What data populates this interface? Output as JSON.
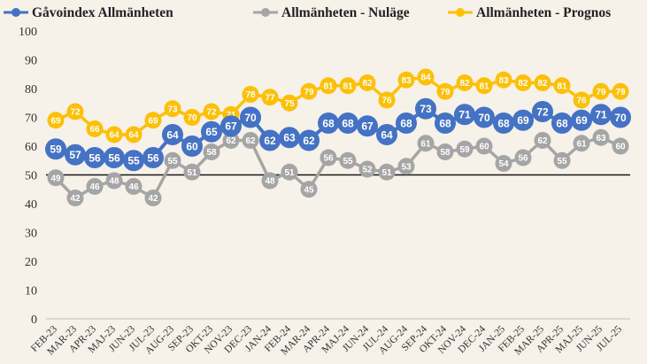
{
  "chart_data": {
    "type": "line",
    "categories": [
      "FEB-23",
      "MAR-23",
      "APR-23",
      "MAJ-23",
      "JUN-23",
      "JUL-23",
      "AUG-23",
      "SEP-23",
      "OKT-23",
      "NOV-23",
      "DEC-23",
      "JAN-24",
      "FEB-24",
      "MAR-24",
      "APR-24",
      "MAJ-24",
      "JUN-24",
      "JUL-24",
      "AUG-24",
      "SEP-24",
      "OKT-24",
      "NOV-24",
      "DEC-24",
      "JAN-25",
      "FEB-25",
      "MAR-25",
      "APR-25",
      "MAJ-25",
      "JUN-25",
      "JUL-25"
    ],
    "series": [
      {
        "name": "Gåvoindex Allmänheten",
        "color": "#4472c4",
        "values": [
          59,
          57,
          56,
          56,
          55,
          56,
          64,
          60,
          65,
          67,
          70,
          62,
          63,
          62,
          68,
          68,
          67,
          64,
          68,
          73,
          68,
          71,
          70,
          68,
          69,
          72,
          68,
          69,
          71,
          70
        ]
      },
      {
        "name": "Allmänheten - Nuläge",
        "color": "#a5a5a5",
        "values": [
          49,
          42,
          46,
          48,
          46,
          42,
          55,
          51,
          58,
          62,
          62,
          48,
          51,
          45,
          56,
          55,
          52,
          51,
          53,
          61,
          58,
          59,
          60,
          54,
          56,
          62,
          55,
          61,
          63,
          60
        ]
      },
      {
        "name": "Allmänheten - Prognos",
        "color": "#ffc000",
        "values": [
          69,
          72,
          66,
          64,
          64,
          69,
          73,
          70,
          72,
          71,
          78,
          77,
          75,
          79,
          81,
          81,
          82,
          76,
          83,
          84,
          79,
          82,
          81,
          83,
          82,
          82,
          81,
          76,
          79,
          79
        ]
      }
    ],
    "y_ticks": [
      "0",
      "10",
      "20",
      "30",
      "40",
      "50",
      "60",
      "70",
      "80",
      "90",
      "100"
    ],
    "ylim": [
      0,
      100
    ],
    "reference_line": 50,
    "legend_position": "top-left",
    "grid": false
  }
}
